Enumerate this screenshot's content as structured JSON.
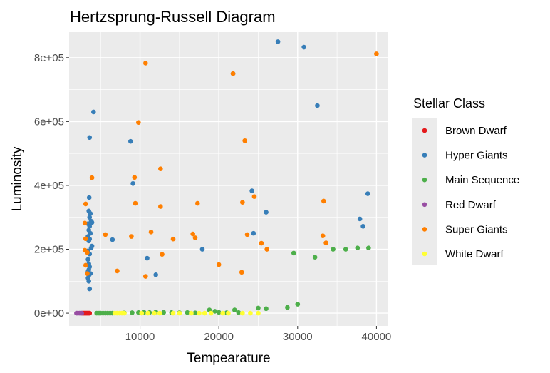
{
  "chart_data": {
    "type": "scatter",
    "title": "Hertzsprung-Russell Diagram",
    "xlabel": "Tempearature",
    "ylabel": "Luminosity",
    "xlim": [
      1000,
      41500
    ],
    "ylim": [
      -40000,
      880000
    ],
    "x_ticks": [
      10000,
      20000,
      30000,
      40000
    ],
    "x_tick_labels": [
      "10000",
      "20000",
      "30000",
      "40000"
    ],
    "y_ticks": [
      0,
      200000,
      400000,
      600000,
      800000
    ],
    "y_tick_labels": [
      "0e+00",
      "2e+05",
      "4e+05",
      "6e+05",
      "8e+05"
    ],
    "grid": true,
    "legend": {
      "title": "Stellar Class",
      "placement": "right"
    },
    "series": [
      {
        "name": "Brown Dwarf",
        "color": "#E41A1C",
        "points": [
          [
            2650,
            0
          ],
          [
            2800,
            0
          ],
          [
            2900,
            0
          ],
          [
            3000,
            0
          ],
          [
            3100,
            0
          ],
          [
            3200,
            0
          ],
          [
            3300,
            0
          ],
          [
            3400,
            0
          ],
          [
            3500,
            0
          ],
          [
            3600,
            0
          ]
        ]
      },
      {
        "name": "Hyper Giants",
        "color": "#377EB8",
        "points": [
          [
            27500,
            850000
          ],
          [
            30800,
            833000
          ],
          [
            21800,
            750000
          ],
          [
            32500,
            650000
          ],
          [
            4100,
            630000
          ],
          [
            3600,
            550000
          ],
          [
            8800,
            538000
          ],
          [
            9100,
            406000
          ],
          [
            24200,
            383000
          ],
          [
            38900,
            374000
          ],
          [
            3550,
            362000
          ],
          [
            26000,
            316000
          ],
          [
            3500,
            320000
          ],
          [
            3700,
            312000
          ],
          [
            3600,
            300000
          ],
          [
            3800,
            288000
          ],
          [
            37900,
            295000
          ],
          [
            3900,
            284000
          ],
          [
            3400,
            280000
          ],
          [
            3600,
            272000
          ],
          [
            38300,
            272000
          ],
          [
            3500,
            260000
          ],
          [
            3700,
            250000
          ],
          [
            24400,
            250000
          ],
          [
            3400,
            240000
          ],
          [
            3600,
            232000
          ],
          [
            6500,
            230000
          ],
          [
            3500,
            226000
          ],
          [
            3900,
            210000
          ],
          [
            3800,
            204000
          ],
          [
            17900,
            200000
          ],
          [
            3400,
            195000
          ],
          [
            3600,
            185000
          ],
          [
            10900,
            172000
          ],
          [
            3400,
            168000
          ],
          [
            3500,
            154000
          ],
          [
            3600,
            145000
          ],
          [
            3500,
            136000
          ],
          [
            3400,
            130000
          ],
          [
            3700,
            124000
          ],
          [
            3500,
            118000
          ],
          [
            3400,
            110000
          ],
          [
            12000,
            120000
          ],
          [
            3500,
            100000
          ],
          [
            3600,
            76000
          ]
        ]
      },
      {
        "name": "Main Sequence",
        "color": "#4DAF4A",
        "points": [
          [
            30000,
            28000
          ],
          [
            28700,
            18000
          ],
          [
            25000,
            16000
          ],
          [
            26000,
            14000
          ],
          [
            22000,
            10000
          ],
          [
            18800,
            10000
          ],
          [
            19500,
            6000
          ],
          [
            12000,
            4000
          ],
          [
            13000,
            2500
          ],
          [
            15000,
            1500
          ],
          [
            17000,
            1000
          ],
          [
            4500,
            0
          ],
          [
            4800,
            0
          ],
          [
            5000,
            0
          ],
          [
            5300,
            0
          ],
          [
            5600,
            0
          ],
          [
            5900,
            0
          ],
          [
            6200,
            0
          ],
          [
            6500,
            0
          ],
          [
            8000,
            1000
          ],
          [
            9000,
            1500
          ],
          [
            9800,
            2000
          ],
          [
            10500,
            2500
          ],
          [
            11200,
            2000
          ],
          [
            14000,
            2000
          ],
          [
            16000,
            2000
          ],
          [
            20000,
            2500
          ],
          [
            21000,
            1500
          ],
          [
            22500,
            2000
          ],
          [
            29500,
            188000
          ],
          [
            32200,
            175000
          ],
          [
            34500,
            200000
          ],
          [
            36100,
            200000
          ],
          [
            37600,
            204000
          ],
          [
            39000,
            204000
          ]
        ]
      },
      {
        "name": "Red Dwarf",
        "color": "#984EA3",
        "points": [
          [
            1940,
            0
          ],
          [
            2100,
            0
          ],
          [
            2300,
            0
          ],
          [
            2450,
            0
          ],
          [
            2600,
            0
          ]
        ]
      },
      {
        "name": "Super Giants",
        "color": "#FF7F00",
        "points": [
          [
            40000,
            812000
          ],
          [
            10700,
            783000
          ],
          [
            21800,
            750000
          ],
          [
            9800,
            597000
          ],
          [
            23300,
            540000
          ],
          [
            9300,
            425000
          ],
          [
            12600,
            452000
          ],
          [
            3900,
            424000
          ],
          [
            24500,
            365000
          ],
          [
            23000,
            347000
          ],
          [
            33300,
            351000
          ],
          [
            17300,
            344000
          ],
          [
            3100,
            342000
          ],
          [
            9400,
            344000
          ],
          [
            12600,
            334000
          ],
          [
            3000,
            282000
          ],
          [
            11400,
            254000
          ],
          [
            16700,
            248000
          ],
          [
            5600,
            246000
          ],
          [
            8900,
            240000
          ],
          [
            23600,
            246000
          ],
          [
            33200,
            242000
          ],
          [
            3100,
            233000
          ],
          [
            17000,
            236000
          ],
          [
            14200,
            232000
          ],
          [
            33600,
            220000
          ],
          [
            25400,
            219000
          ],
          [
            3000,
            197000
          ],
          [
            3300,
            190000
          ],
          [
            12800,
            184000
          ],
          [
            26100,
            200000
          ],
          [
            3100,
            150000
          ],
          [
            20000,
            152000
          ],
          [
            7100,
            132000
          ],
          [
            22900,
            128000
          ],
          [
            3300,
            124000
          ],
          [
            10700,
            115000
          ]
        ]
      },
      {
        "name": "White Dwarf",
        "color": "#FFFF33",
        "points": [
          [
            6800,
            0
          ],
          [
            7100,
            0
          ],
          [
            7400,
            0
          ],
          [
            7700,
            0
          ],
          [
            8000,
            0
          ],
          [
            10200,
            0
          ],
          [
            11000,
            0
          ],
          [
            11800,
            0
          ],
          [
            12500,
            0
          ],
          [
            14200,
            0
          ],
          [
            15000,
            0
          ],
          [
            16500,
            0
          ],
          [
            17500,
            0
          ],
          [
            18200,
            0
          ],
          [
            19000,
            0
          ],
          [
            20500,
            0
          ],
          [
            21200,
            0
          ],
          [
            23000,
            0
          ],
          [
            24000,
            0
          ],
          [
            25000,
            0
          ]
        ]
      }
    ]
  }
}
